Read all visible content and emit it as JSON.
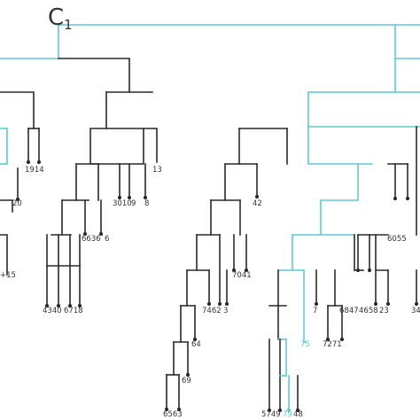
{
  "diagram": {
    "root_label": "C",
    "root_subscript": "1",
    "colors": {
      "tree": "#2a2a2a",
      "highlight": "#5fc9d4",
      "label": "#333333"
    },
    "leaf_labels": [
      "1914",
      "13",
      "20",
      "3010",
      "9",
      "8",
      "6636",
      "6",
      "42",
      "+15",
      "7041",
      "6055",
      "4340",
      "6718",
      "7462",
      "3",
      "7",
      "6847",
      "4658",
      "23",
      "34",
      "64",
      "7271",
      "75",
      "69",
      "6563",
      "5749",
      "79",
      "48"
    ]
  }
}
